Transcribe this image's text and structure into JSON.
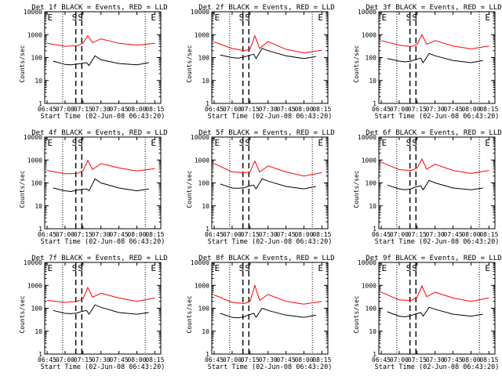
{
  "figure": {
    "start_time_label": "Start Time (02-Jun-08 06:43:20)",
    "ylabel": "Counts/sec",
    "x_ticks": [
      "06:45",
      "07:00",
      "07:15",
      "07:30",
      "07:45",
      "08:00",
      "08:15"
    ],
    "y_ticks": [
      "1",
      "10",
      "100",
      "1000",
      "10000"
    ],
    "colors": {
      "events": "#000000",
      "lld": "#ff0000"
    }
  },
  "chart_data": [
    {
      "type": "line",
      "title": "Det 1f BLACK = Events, RED = LLD",
      "xlabel": "Start Time (02-Jun-08 06:43:20)",
      "ylabel": "Counts/sec",
      "yscale": "log",
      "ylim": [
        1,
        10000
      ],
      "xlim": [
        "06:43",
        "08:20"
      ],
      "markers": [
        {
          "label": "E",
          "x": "06:44"
        },
        {
          "label": "S",
          "x": "07:09"
        },
        {
          "label": "S",
          "x": "07:14"
        },
        {
          "label": "E",
          "x": "08:13"
        }
      ],
      "series": [
        {
          "name": "LLD",
          "color": "red",
          "x": [
            "06:45",
            "07:00",
            "07:10",
            "07:15",
            "07:19",
            "07:23",
            "07:30",
            "07:45",
            "08:00",
            "08:15"
          ],
          "y": [
            420,
            310,
            330,
            420,
            900,
            450,
            650,
            420,
            350,
            420
          ]
        },
        {
          "name": "Events",
          "color": "black",
          "x": [
            "06:50",
            "07:00",
            "07:05",
            "07:10",
            "07:13",
            "07:18",
            "07:20",
            "07:25",
            "07:30",
            "07:45",
            "08:00",
            "08:10"
          ],
          "y": [
            70,
            50,
            48,
            52,
            55,
            60,
            45,
            120,
            80,
            55,
            48,
            60
          ]
        }
      ]
    },
    {
      "type": "line",
      "title": "Det 2f BLACK = Events, RED = LLD",
      "xlabel": "Start Time (02-Jun-08 06:43:20)",
      "ylabel": "Counts/sec",
      "yscale": "log",
      "ylim": [
        1,
        10000
      ],
      "xlim": [
        "06:43",
        "08:20"
      ],
      "markers": [
        {
          "label": "E",
          "x": "06:44"
        },
        {
          "label": "S",
          "x": "07:09"
        },
        {
          "label": "S",
          "x": "07:14"
        },
        {
          "label": "E",
          "x": "08:13"
        }
      ],
      "series": [
        {
          "name": "LLD",
          "color": "red",
          "x": [
            "06:45",
            "07:00",
            "07:10",
            "07:15",
            "07:19",
            "07:23",
            "07:30",
            "07:45",
            "08:00",
            "08:15"
          ],
          "y": [
            480,
            250,
            200,
            230,
            900,
            250,
            500,
            230,
            160,
            210
          ]
        },
        {
          "name": "Events",
          "color": "black",
          "x": [
            "06:50",
            "07:00",
            "07:05",
            "07:10",
            "07:13",
            "07:18",
            "07:20",
            "07:25",
            "07:30",
            "07:45",
            "08:00",
            "08:10"
          ],
          "y": [
            130,
            100,
            95,
            105,
            120,
            140,
            90,
            250,
            200,
            120,
            90,
            110
          ]
        }
      ]
    },
    {
      "type": "line",
      "title": "Det 3f BLACK = Events, RED = LLD",
      "xlabel": "Start Time (02-Jun-08 06:43:20)",
      "ylabel": "Counts/sec",
      "yscale": "log",
      "ylim": [
        1,
        10000
      ],
      "xlim": [
        "06:43",
        "08:20"
      ],
      "markers": [
        {
          "label": "E",
          "x": "06:44"
        },
        {
          "label": "S",
          "x": "07:09"
        },
        {
          "label": "S",
          "x": "07:14"
        },
        {
          "label": "E",
          "x": "08:13"
        }
      ],
      "series": [
        {
          "name": "LLD",
          "color": "red",
          "x": [
            "06:45",
            "07:00",
            "07:10",
            "07:15",
            "07:19",
            "07:23",
            "07:30",
            "07:45",
            "08:00",
            "08:15"
          ],
          "y": [
            550,
            350,
            300,
            380,
            1000,
            380,
            550,
            320,
            240,
            320
          ]
        },
        {
          "name": "Events",
          "color": "black",
          "x": [
            "06:50",
            "07:00",
            "07:05",
            "07:10",
            "07:13",
            "07:18",
            "07:20",
            "07:25",
            "07:30",
            "07:45",
            "08:00",
            "08:10"
          ],
          "y": [
            90,
            70,
            65,
            70,
            80,
            95,
            60,
            150,
            120,
            75,
            60,
            75
          ]
        }
      ]
    },
    {
      "type": "line",
      "title": "Det 4f BLACK = Events, RED = LLD",
      "xlabel": "Start Time (02-Jun-08 06:43:20)",
      "ylabel": "Counts/sec",
      "yscale": "log",
      "ylim": [
        1,
        10000
      ],
      "xlim": [
        "06:43",
        "08:20"
      ],
      "markers": [
        {
          "label": "E",
          "x": "06:44"
        },
        {
          "label": "S",
          "x": "07:09"
        },
        {
          "label": "S",
          "x": "07:14"
        },
        {
          "label": "E",
          "x": "08:13"
        }
      ],
      "series": [
        {
          "name": "LLD",
          "color": "red",
          "x": [
            "06:45",
            "07:00",
            "07:10",
            "07:15",
            "07:19",
            "07:23",
            "07:30",
            "07:45",
            "08:00",
            "08:15"
          ],
          "y": [
            350,
            250,
            260,
            340,
            950,
            380,
            700,
            450,
            330,
            420
          ]
        },
        {
          "name": "Events",
          "color": "black",
          "x": [
            "06:50",
            "07:00",
            "07:05",
            "07:10",
            "07:13",
            "07:18",
            "07:20",
            "07:25",
            "07:30",
            "07:45",
            "08:00",
            "08:10"
          ],
          "y": [
            60,
            45,
            42,
            48,
            50,
            55,
            45,
            150,
            100,
            60,
            45,
            55
          ]
        }
      ]
    },
    {
      "type": "line",
      "title": "Det 5f BLACK = Events, RED = LLD",
      "xlabel": "Start Time (02-Jun-08 06:43:20)",
      "ylabel": "Counts/sec",
      "yscale": "log",
      "ylim": [
        1,
        10000
      ],
      "xlim": [
        "06:43",
        "08:20"
      ],
      "markers": [
        {
          "label": "E",
          "x": "06:44"
        },
        {
          "label": "S",
          "x": "07:09"
        },
        {
          "label": "S",
          "x": "07:14"
        },
        {
          "label": "E",
          "x": "08:13"
        }
      ],
      "series": [
        {
          "name": "LLD",
          "color": "red",
          "x": [
            "06:45",
            "07:00",
            "07:10",
            "07:15",
            "07:19",
            "07:23",
            "07:30",
            "07:45",
            "08:00",
            "08:15"
          ],
          "y": [
            700,
            300,
            280,
            300,
            900,
            300,
            550,
            300,
            200,
            280
          ]
        },
        {
          "name": "Events",
          "color": "black",
          "x": [
            "06:50",
            "07:00",
            "07:05",
            "07:10",
            "07:13",
            "07:18",
            "07:20",
            "07:25",
            "07:30",
            "07:45",
            "08:00",
            "08:10"
          ],
          "y": [
            90,
            60,
            58,
            62,
            70,
            80,
            55,
            150,
            120,
            70,
            55,
            70
          ]
        }
      ]
    },
    {
      "type": "line",
      "title": "Det 6f BLACK = Events, RED = LLD",
      "xlabel": "Start Time (02-Jun-08 06:43:20)",
      "ylabel": "Counts/sec",
      "yscale": "log",
      "ylim": [
        1,
        10000
      ],
      "xlim": [
        "06:43",
        "08:20"
      ],
      "markers": [
        {
          "label": "E",
          "x": "06:44"
        },
        {
          "label": "S",
          "x": "07:09"
        },
        {
          "label": "S",
          "x": "07:14"
        },
        {
          "label": "E",
          "x": "08:13"
        }
      ],
      "series": [
        {
          "name": "LLD",
          "color": "red",
          "x": [
            "06:45",
            "07:00",
            "07:10",
            "07:15",
            "07:19",
            "07:23",
            "07:30",
            "07:45",
            "08:00",
            "08:15"
          ],
          "y": [
            800,
            380,
            350,
            450,
            1100,
            400,
            650,
            350,
            260,
            350
          ]
        },
        {
          "name": "Events",
          "color": "black",
          "x": [
            "06:50",
            "07:00",
            "07:05",
            "07:10",
            "07:13",
            "07:18",
            "07:20",
            "07:25",
            "07:30",
            "07:45",
            "08:00",
            "08:10"
          ],
          "y": [
            80,
            55,
            50,
            55,
            65,
            75,
            50,
            130,
            100,
            60,
            50,
            60
          ]
        }
      ]
    },
    {
      "type": "line",
      "title": "Det 7f BLACK = Events, RED = LLD",
      "xlabel": "Start Time (02-Jun-08 06:43:20)",
      "ylabel": "Counts/sec",
      "yscale": "log",
      "ylim": [
        1,
        10000
      ],
      "xlim": [
        "06:43",
        "08:20"
      ],
      "markers": [
        {
          "label": "E",
          "x": "06:44"
        },
        {
          "label": "S",
          "x": "07:09"
        },
        {
          "label": "S",
          "x": "07:14"
        },
        {
          "label": "E",
          "x": "08:13"
        }
      ],
      "series": [
        {
          "name": "LLD",
          "color": "red",
          "x": [
            "06:45",
            "07:00",
            "07:10",
            "07:15",
            "07:19",
            "07:23",
            "07:30",
            "07:45",
            "08:00",
            "08:15"
          ],
          "y": [
            220,
            180,
            200,
            260,
            800,
            300,
            450,
            280,
            200,
            280
          ]
        },
        {
          "name": "Events",
          "color": "black",
          "x": [
            "06:50",
            "07:00",
            "07:05",
            "07:10",
            "07:13",
            "07:18",
            "07:20",
            "07:25",
            "07:30",
            "07:45",
            "08:00",
            "08:10"
          ],
          "y": [
            80,
            60,
            58,
            62,
            70,
            80,
            55,
            140,
            110,
            65,
            55,
            65
          ]
        }
      ]
    },
    {
      "type": "line",
      "title": "Det 8f BLACK = Events, RED = LLD",
      "xlabel": "Start Time (02-Jun-08 06:43:20)",
      "ylabel": "Counts/sec",
      "yscale": "log",
      "ylim": [
        1,
        10000
      ],
      "xlim": [
        "06:43",
        "08:20"
      ],
      "markers": [
        {
          "label": "E",
          "x": "06:44"
        },
        {
          "label": "S",
          "x": "07:09"
        },
        {
          "label": "S",
          "x": "07:14"
        },
        {
          "label": "E",
          "x": "08:13"
        }
      ],
      "series": [
        {
          "name": "LLD",
          "color": "red",
          "x": [
            "06:45",
            "07:00",
            "07:10",
            "07:15",
            "07:19",
            "07:23",
            "07:30",
            "07:45",
            "08:00",
            "08:15"
          ],
          "y": [
            380,
            180,
            160,
            200,
            1000,
            220,
            400,
            200,
            150,
            200
          ]
        },
        {
          "name": "Events",
          "color": "black",
          "x": [
            "06:50",
            "07:00",
            "07:05",
            "07:10",
            "07:13",
            "07:18",
            "07:20",
            "07:25",
            "07:30",
            "07:45",
            "08:00",
            "08:10"
          ],
          "y": [
            60,
            40,
            38,
            42,
            50,
            60,
            40,
            100,
            80,
            50,
            40,
            50
          ]
        }
      ]
    },
    {
      "type": "line",
      "title": "Det 9f BLACK = Events, RED = LLD",
      "xlabel": "Start Time (02-Jun-08 06:43:20)",
      "ylabel": "Counts/sec",
      "yscale": "log",
      "ylim": [
        1,
        10000
      ],
      "xlim": [
        "06:43",
        "08:20"
      ],
      "markers": [
        {
          "label": "E",
          "x": "06:44"
        },
        {
          "label": "S",
          "x": "07:09"
        },
        {
          "label": "S",
          "x": "07:14"
        },
        {
          "label": "E",
          "x": "08:13"
        }
      ],
      "series": [
        {
          "name": "LLD",
          "color": "red",
          "x": [
            "06:45",
            "07:00",
            "07:10",
            "07:15",
            "07:19",
            "07:23",
            "07:30",
            "07:45",
            "08:00",
            "08:15"
          ],
          "y": [
            500,
            230,
            220,
            300,
            950,
            320,
            500,
            280,
            200,
            280
          ]
        },
        {
          "name": "Events",
          "color": "black",
          "x": [
            "06:50",
            "07:00",
            "07:05",
            "07:10",
            "07:13",
            "07:18",
            "07:20",
            "07:25",
            "07:30",
            "07:45",
            "08:00",
            "08:10"
          ],
          "y": [
            70,
            45,
            42,
            48,
            55,
            65,
            45,
            110,
            90,
            55,
            45,
            55
          ]
        }
      ]
    }
  ]
}
